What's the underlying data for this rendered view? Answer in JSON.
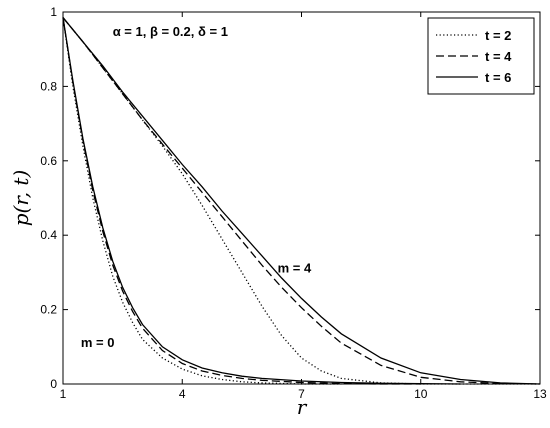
{
  "chart_data": {
    "type": "line",
    "xlabel": "r",
    "ylabel": "p(r, t)",
    "xlim": [
      1,
      13
    ],
    "ylim": [
      0,
      1
    ],
    "xticks": [
      1,
      4,
      7,
      10,
      13
    ],
    "yticks": [
      0,
      0.2,
      0.4,
      0.6,
      0.8,
      1
    ],
    "xtick_labels": [
      "1",
      "4",
      "7",
      "10",
      "13"
    ],
    "ytick_labels": [
      "0",
      "0.2",
      "0.4",
      "0.6",
      "0.8",
      "1"
    ],
    "grid": false,
    "legend_position": "top-right",
    "annotations": [
      {
        "text": "α = 1, β = 0.2, δ = 1",
        "x": 2.25,
        "y": 0.935
      },
      {
        "text": "m = 4",
        "x": 6.4,
        "y": 0.3
      },
      {
        "text": "m = 0",
        "x": 1.45,
        "y": 0.1
      }
    ],
    "series": [
      {
        "name": "t = 2",
        "style": "dotted",
        "group": "m = 4",
        "x": [
          1,
          1.5,
          2,
          2.5,
          3,
          3.5,
          4,
          4.5,
          5,
          5.5,
          6,
          6.5,
          7,
          7.5,
          8,
          9,
          10,
          11,
          12,
          13
        ],
        "y": [
          0.985,
          0.92,
          0.85,
          0.78,
          0.71,
          0.64,
          0.565,
          0.48,
          0.39,
          0.3,
          0.21,
          0.13,
          0.07,
          0.035,
          0.015,
          0.003,
          0.0,
          0.0,
          0.0,
          0.0
        ]
      },
      {
        "name": "t = 4",
        "style": "dashed",
        "group": "m = 4",
        "x": [
          1,
          1.5,
          2,
          2.5,
          3,
          3.5,
          4,
          4.5,
          5,
          5.5,
          6,
          6.5,
          7,
          7.5,
          8,
          9,
          10,
          11,
          12,
          13
        ],
        "y": [
          0.985,
          0.92,
          0.85,
          0.78,
          0.71,
          0.645,
          0.58,
          0.515,
          0.45,
          0.385,
          0.32,
          0.26,
          0.205,
          0.155,
          0.11,
          0.05,
          0.018,
          0.006,
          0.001,
          0.0
        ]
      },
      {
        "name": "t = 6",
        "style": "solid",
        "group": "m = 4",
        "x": [
          1,
          1.5,
          2,
          2.5,
          3,
          3.5,
          4,
          4.5,
          5,
          5.5,
          6,
          6.5,
          7,
          7.5,
          8,
          9,
          10,
          11,
          12,
          13
        ],
        "y": [
          0.985,
          0.92,
          0.855,
          0.785,
          0.72,
          0.655,
          0.59,
          0.53,
          0.465,
          0.405,
          0.345,
          0.285,
          0.23,
          0.18,
          0.135,
          0.07,
          0.03,
          0.012,
          0.003,
          0.0
        ]
      },
      {
        "name": "",
        "style": "dotted",
        "group": "m = 0",
        "x": [
          1,
          1.25,
          1.5,
          1.75,
          2,
          2.25,
          2.5,
          2.75,
          3,
          3.5,
          4,
          4.5,
          5,
          5.5,
          6,
          7,
          8
        ],
        "y": [
          0.985,
          0.8,
          0.64,
          0.5,
          0.385,
          0.29,
          0.22,
          0.165,
          0.12,
          0.07,
          0.04,
          0.022,
          0.012,
          0.006,
          0.003,
          0.0,
          0.0
        ]
      },
      {
        "name": "",
        "style": "dashed",
        "group": "m = 0",
        "x": [
          1,
          1.25,
          1.5,
          1.75,
          2,
          2.25,
          2.5,
          2.75,
          3,
          3.5,
          4,
          4.5,
          5,
          5.5,
          6,
          7,
          8,
          9,
          10
        ],
        "y": [
          0.985,
          0.81,
          0.655,
          0.52,
          0.41,
          0.32,
          0.25,
          0.195,
          0.15,
          0.09,
          0.055,
          0.035,
          0.023,
          0.015,
          0.01,
          0.004,
          0.001,
          0.0,
          0.0
        ]
      },
      {
        "name": "",
        "style": "solid",
        "group": "m = 0",
        "x": [
          1,
          1.25,
          1.5,
          1.75,
          2,
          2.25,
          2.5,
          2.75,
          3,
          3.5,
          4,
          4.5,
          5,
          5.5,
          6,
          7,
          8,
          9,
          10,
          11
        ],
        "y": [
          0.985,
          0.815,
          0.66,
          0.53,
          0.42,
          0.33,
          0.26,
          0.205,
          0.16,
          0.1,
          0.065,
          0.043,
          0.03,
          0.021,
          0.015,
          0.008,
          0.004,
          0.002,
          0.001,
          0.0
        ]
      }
    ]
  }
}
